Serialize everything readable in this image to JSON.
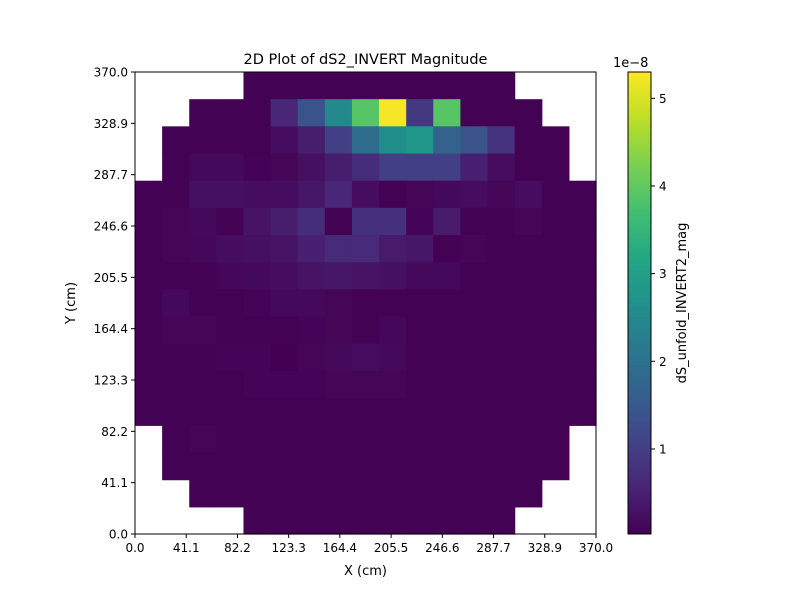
{
  "chart_data": {
    "type": "heatmap",
    "title": "2D Plot of dS2_INVERT Magnitude",
    "xlabel": "X (cm)",
    "ylabel": "Y (cm)",
    "xlim": [
      0,
      370
    ],
    "ylim": [
      0,
      370
    ],
    "x_tick_labels": [
      "0.0",
      "41.1",
      "82.2",
      "123.3",
      "164.4",
      "205.5",
      "246.6",
      "287.7",
      "328.9",
      "370.0"
    ],
    "y_tick_labels": [
      "0.0",
      "41.1",
      "82.2",
      "123.3",
      "164.4",
      "205.5",
      "246.6",
      "287.7",
      "328.9",
      "370.0"
    ],
    "colorbar": {
      "label": "dS_unfold_INVERT2_mag",
      "offset_text": "1e−8",
      "ticks": [
        "1",
        "2",
        "3",
        "4",
        "5"
      ],
      "tick_values": [
        1,
        2,
        3,
        4,
        5
      ],
      "vmin": 0.03,
      "vmax": 5.3,
      "colormap": "viridis"
    },
    "grid_note": "17x17 bins from y=370 (top row) down to y=0; null = empty",
    "z_units_scale": 1e-08,
    "z": [
      [
        null,
        null,
        null,
        null,
        0.05,
        0.05,
        0.05,
        0.05,
        0.05,
        0.05,
        0.05,
        0.05,
        0.05,
        0.05,
        null,
        null,
        null
      ],
      [
        null,
        null,
        0.05,
        0.05,
        0.05,
        0.6,
        1.4,
        2.5,
        3.9,
        5.25,
        0.9,
        3.9,
        0.05,
        0.05,
        0.05,
        null,
        null
      ],
      [
        null,
        0.05,
        0.05,
        0.05,
        0.05,
        0.2,
        0.45,
        1.0,
        1.9,
        2.6,
        2.8,
        1.7,
        1.4,
        0.8,
        0.05,
        0.05,
        null
      ],
      [
        null,
        0.05,
        0.15,
        0.15,
        0.06,
        0.1,
        0.25,
        0.45,
        0.7,
        1.0,
        1.0,
        1.0,
        0.5,
        0.2,
        0.05,
        0.05,
        null
      ],
      [
        0.05,
        0.05,
        0.25,
        0.25,
        0.2,
        0.2,
        0.35,
        0.6,
        0.2,
        0.05,
        0.1,
        0.15,
        0.2,
        0.1,
        0.2,
        0.05,
        0.05
      ],
      [
        0.05,
        0.1,
        0.15,
        0.05,
        0.3,
        0.45,
        0.7,
        0.05,
        0.75,
        0.75,
        0.08,
        0.4,
        0.05,
        0.05,
        0.1,
        0.05,
        0.05
      ],
      [
        0.05,
        0.1,
        0.12,
        0.2,
        0.25,
        0.3,
        0.5,
        0.65,
        0.65,
        0.4,
        0.35,
        0.05,
        0.1,
        0.05,
        0.05,
        0.05,
        0.05
      ],
      [
        0.05,
        0.05,
        0.05,
        0.12,
        0.15,
        0.2,
        0.3,
        0.35,
        0.3,
        0.25,
        0.15,
        0.15,
        0.05,
        0.05,
        0.05,
        0.05,
        0.05
      ],
      [
        0.05,
        0.15,
        0.05,
        0.05,
        0.08,
        0.15,
        0.15,
        0.1,
        0.05,
        0.05,
        0.05,
        0.05,
        0.05,
        0.05,
        0.05,
        0.05,
        0.05
      ],
      [
        0.05,
        0.1,
        0.1,
        0.05,
        0.05,
        0.05,
        0.08,
        0.1,
        0.05,
        0.12,
        0.05,
        0.05,
        0.05,
        0.05,
        0.05,
        0.05,
        0.05
      ],
      [
        0.05,
        0.05,
        0.05,
        0.08,
        0.08,
        0.03,
        0.1,
        0.15,
        0.2,
        0.15,
        0.05,
        0.05,
        0.05,
        0.05,
        0.05,
        0.05,
        0.05
      ],
      [
        0.05,
        0.05,
        0.05,
        0.05,
        0.08,
        0.08,
        0.08,
        0.1,
        0.1,
        0.1,
        0.05,
        0.05,
        0.05,
        0.05,
        0.05,
        0.05,
        0.05
      ],
      [
        0.05,
        0.05,
        0.05,
        0.05,
        0.05,
        0.05,
        0.05,
        0.05,
        0.05,
        0.05,
        0.05,
        0.05,
        0.05,
        0.05,
        0.05,
        0.05,
        0.05
      ],
      [
        null,
        0.05,
        0.1,
        0.05,
        0.05,
        0.05,
        0.05,
        0.05,
        0.05,
        0.05,
        0.05,
        0.05,
        0.05,
        0.05,
        0.05,
        0.05,
        null
      ],
      [
        null,
        0.05,
        0.05,
        0.05,
        0.05,
        0.05,
        0.05,
        0.05,
        0.05,
        0.05,
        0.05,
        0.05,
        0.05,
        0.05,
        0.05,
        0.05,
        null
      ],
      [
        null,
        null,
        0.05,
        0.05,
        0.05,
        0.05,
        0.05,
        0.05,
        0.05,
        0.05,
        0.05,
        0.05,
        0.05,
        0.05,
        0.05,
        null,
        null
      ],
      [
        null,
        null,
        null,
        null,
        0.05,
        0.05,
        0.05,
        0.05,
        0.05,
        0.05,
        0.05,
        0.05,
        0.05,
        0.05,
        null,
        null,
        null
      ]
    ]
  }
}
